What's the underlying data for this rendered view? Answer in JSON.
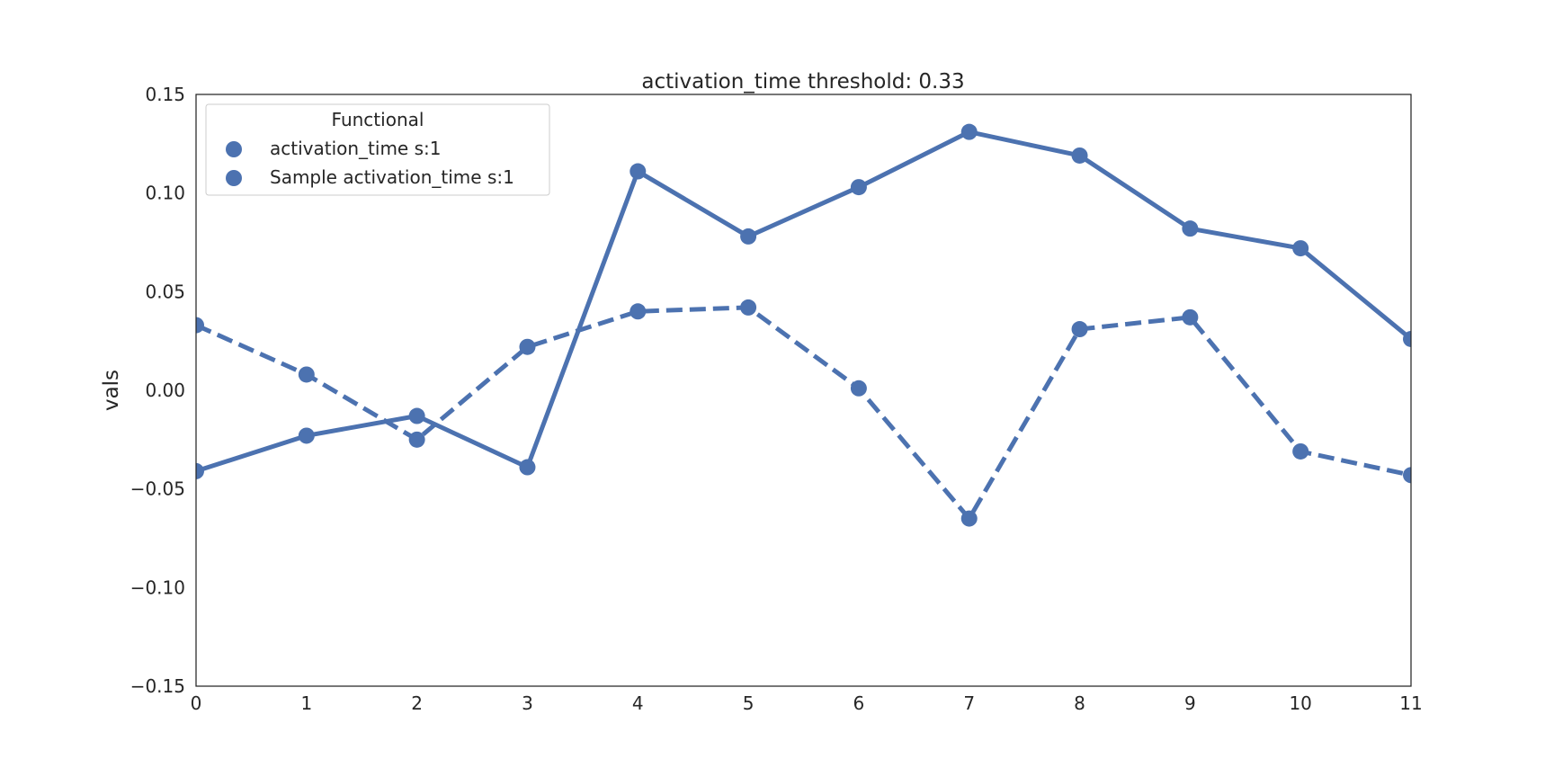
{
  "chart_data": {
    "type": "line",
    "title": "activation_time threshold: 0.33",
    "xlabel": "",
    "ylabel": "vals",
    "x": [
      0,
      1,
      2,
      3,
      4,
      5,
      6,
      7,
      8,
      9,
      10,
      11
    ],
    "xticks": [
      "0",
      "1",
      "2",
      "3",
      "4",
      "5",
      "6",
      "7",
      "8",
      "9",
      "10",
      "11"
    ],
    "xlim": [
      0,
      11
    ],
    "ylim": [
      -0.15,
      0.15
    ],
    "yticks": [
      {
        "value": 0.15,
        "label": "0.15"
      },
      {
        "value": 0.1,
        "label": "0.10"
      },
      {
        "value": 0.05,
        "label": "0.05"
      },
      {
        "value": 0.0,
        "label": "0.00"
      },
      {
        "value": -0.05,
        "label": "−0.05"
      },
      {
        "value": -0.1,
        "label": "−0.10"
      },
      {
        "value": -0.15,
        "label": "−0.15"
      }
    ],
    "grid": false,
    "legend": {
      "title": "Functional",
      "position": "top-left"
    },
    "series": [
      {
        "name": "activation_time s:1",
        "style": "solid",
        "color": "#4c72b0",
        "values": [
          -0.041,
          -0.023,
          -0.013,
          -0.039,
          0.111,
          0.078,
          0.103,
          0.131,
          0.119,
          0.082,
          0.072,
          0.026
        ]
      },
      {
        "name": "Sample activation_time s:1",
        "style": "dashed",
        "color": "#4c72b0",
        "values": [
          0.033,
          0.008,
          -0.025,
          0.022,
          0.04,
          0.042,
          0.001,
          -0.065,
          0.031,
          0.037,
          -0.031,
          -0.043
        ]
      }
    ]
  }
}
